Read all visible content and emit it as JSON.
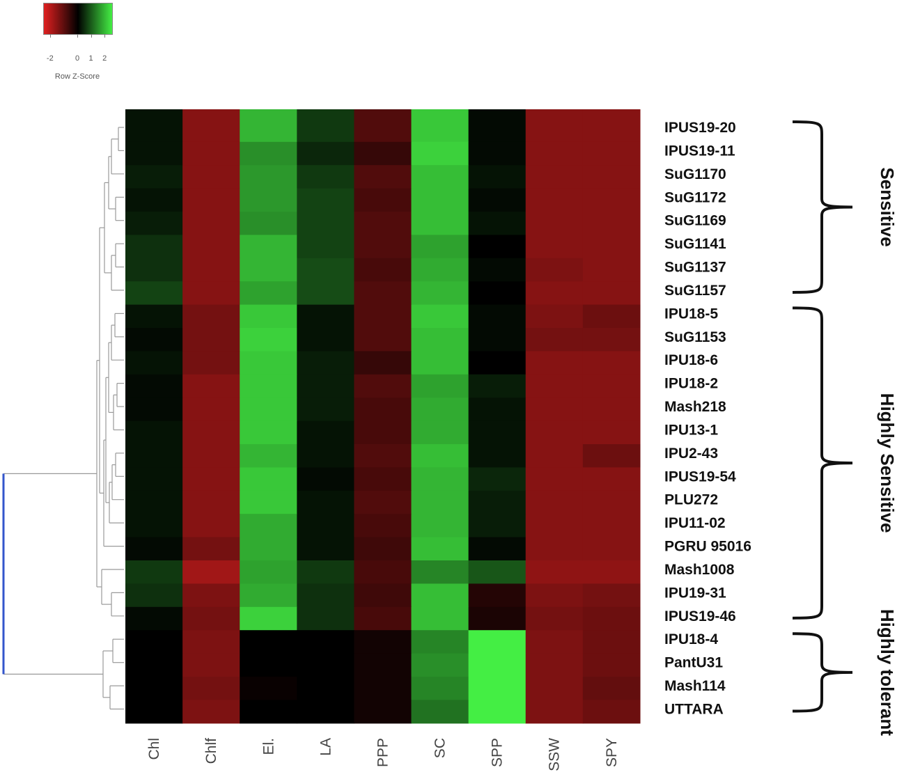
{
  "legend": {
    "title": "Row Z-Score",
    "ticks": [
      "-2",
      "0",
      "1",
      "2"
    ],
    "tick_values": [
      -2,
      0,
      1,
      2
    ],
    "range": [
      -2.5,
      2.5
    ],
    "low_color": "#e02020",
    "mid_color": "#000000",
    "high_color": "#44ee44"
  },
  "chart_data": {
    "type": "heatmap",
    "title": "",
    "xlabel": "",
    "ylabel": "",
    "columns": [
      "Chl",
      "Chlf",
      "El.",
      "LA",
      "PPP",
      "SC",
      "SPP",
      "SSW",
      "SPY"
    ],
    "rows": [
      "IPUS19-20",
      "IPUS19-11",
      "SuG1170",
      "SuG1172",
      "SuG1169",
      "SuG1141",
      "SuG1137",
      "SuG1157",
      "IPU18-5",
      "SuG1153",
      "IPU18-6",
      "IPU18-2",
      "Mash218",
      "IPU13-1",
      "IPU2-43",
      "IPUS19-54",
      "PLU272",
      "IPU11-02",
      "PGRU 95016",
      "Mash1008",
      "IPU19-31",
      "IPUS19-46",
      "IPU18-4",
      "PantU31",
      "Mash114",
      "UTTARA"
    ],
    "values": [
      [
        0.2,
        -1.5,
        1.9,
        0.6,
        -0.9,
        2.1,
        0.1,
        -1.5,
        -1.5
      ],
      [
        0.2,
        -1.5,
        1.5,
        0.4,
        -0.6,
        2.2,
        0.1,
        -1.5,
        -1.5
      ],
      [
        0.3,
        -1.5,
        1.6,
        0.6,
        -0.9,
        2.0,
        0.2,
        -1.5,
        -1.5
      ],
      [
        0.2,
        -1.5,
        1.6,
        0.7,
        -0.8,
        2.0,
        0.1,
        -1.5,
        -1.5
      ],
      [
        0.3,
        -1.5,
        1.5,
        0.7,
        -0.9,
        2.0,
        0.2,
        -1.5,
        -1.5
      ],
      [
        0.5,
        -1.5,
        1.9,
        0.7,
        -0.9,
        1.7,
        0.0,
        -1.5,
        -1.5
      ],
      [
        0.5,
        -1.5,
        1.9,
        0.8,
        -0.8,
        1.8,
        0.1,
        -1.4,
        -1.5
      ],
      [
        0.7,
        -1.5,
        1.7,
        0.8,
        -0.9,
        1.9,
        0.0,
        -1.5,
        -1.5
      ],
      [
        0.2,
        -1.3,
        2.1,
        0.2,
        -0.9,
        2.1,
        0.1,
        -1.4,
        -1.2
      ],
      [
        0.1,
        -1.3,
        2.2,
        0.2,
        -0.9,
        2.0,
        0.1,
        -1.3,
        -1.3
      ],
      [
        0.2,
        -1.3,
        2.1,
        0.3,
        -0.6,
        2.0,
        0.0,
        -1.5,
        -1.5
      ],
      [
        0.1,
        -1.5,
        2.1,
        0.3,
        -0.9,
        1.7,
        0.3,
        -1.5,
        -1.5
      ],
      [
        0.1,
        -1.5,
        2.1,
        0.3,
        -0.8,
        1.8,
        0.2,
        -1.5,
        -1.5
      ],
      [
        0.2,
        -1.5,
        2.1,
        0.2,
        -0.8,
        1.8,
        0.2,
        -1.5,
        -1.5
      ],
      [
        0.2,
        -1.5,
        1.9,
        0.2,
        -0.9,
        2.0,
        0.2,
        -1.5,
        -1.2
      ],
      [
        0.2,
        -1.5,
        2.1,
        0.1,
        -0.8,
        1.9,
        0.4,
        -1.5,
        -1.5
      ],
      [
        0.2,
        -1.5,
        2.1,
        0.2,
        -0.9,
        1.9,
        0.3,
        -1.5,
        -1.5
      ],
      [
        0.2,
        -1.5,
        1.8,
        0.2,
        -0.8,
        1.9,
        0.3,
        -1.5,
        -1.5
      ],
      [
        0.1,
        -1.3,
        1.8,
        0.2,
        -0.7,
        2.0,
        0.1,
        -1.5,
        -1.5
      ],
      [
        0.6,
        -1.8,
        1.7,
        0.6,
        -0.8,
        1.4,
        0.9,
        -1.6,
        -1.6
      ],
      [
        0.5,
        -1.4,
        1.8,
        0.5,
        -0.7,
        2.0,
        -0.4,
        -1.4,
        -1.3
      ],
      [
        0.1,
        -1.3,
        2.2,
        0.5,
        -0.8,
        2.0,
        -0.3,
        -1.3,
        -1.2
      ],
      [
        0.0,
        -1.4,
        0.0,
        0.0,
        -0.2,
        1.4,
        2.5,
        -1.4,
        -1.2
      ],
      [
        0.0,
        -1.4,
        0.0,
        0.0,
        -0.2,
        1.5,
        2.5,
        -1.4,
        -1.2
      ],
      [
        0.0,
        -1.3,
        -0.1,
        0.0,
        -0.2,
        1.4,
        2.5,
        -1.4,
        -1.1
      ],
      [
        0.0,
        -1.4,
        0.0,
        0.0,
        -0.2,
        1.2,
        2.5,
        -1.4,
        -1.2
      ]
    ],
    "grid": false,
    "legend_position": "top-left"
  },
  "groups": [
    {
      "label": "Sensitive",
      "first_row": 0,
      "last_row": 7
    },
    {
      "label": "Highly Sensitive",
      "first_row": 8,
      "last_row": 21
    },
    {
      "label": "Highly tolerant",
      "first_row": 22,
      "last_row": 25
    }
  ],
  "dendrogram": {
    "color": "#999999",
    "root_color": "#3355cc"
  }
}
